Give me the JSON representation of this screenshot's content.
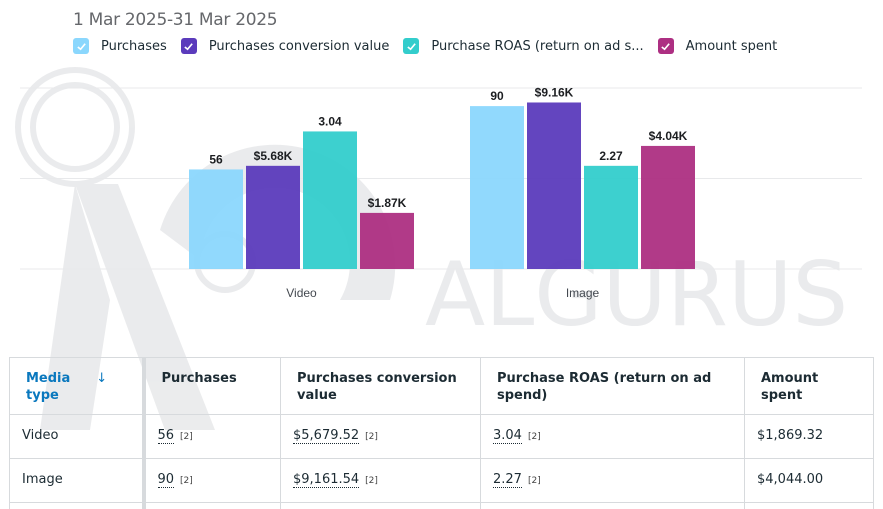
{
  "header": {
    "date_range": "1 Mar 2025-31 Mar 2025"
  },
  "legend": [
    {
      "label": "Purchases",
      "color": "#8bd7fd"
    },
    {
      "label": "Purchases conversion value",
      "color": "#5b3bbc"
    },
    {
      "label": "Purchase ROAS (return on ad s...",
      "color": "#33cdcc"
    },
    {
      "label": "Amount spent",
      "color": "#ad2f82"
    }
  ],
  "chart_data": {
    "type": "bar",
    "title": "",
    "xlabel": "",
    "ylabel": "",
    "categories": [
      "Video",
      "Image"
    ],
    "series": [
      {
        "name": "Purchases",
        "values": [
          56,
          90
        ],
        "labels": [
          "56",
          "90"
        ],
        "color": "#8bd7fd"
      },
      {
        "name": "Purchases conversion value",
        "values": [
          5679.52,
          9161.54
        ],
        "labels": [
          "$5.68K",
          "$9.16K"
        ],
        "color": "#5b3bbc"
      },
      {
        "name": "Purchase ROAS (return on ad spend)",
        "values": [
          3.04,
          2.27
        ],
        "labels": [
          "3.04",
          "2.27"
        ],
        "color": "#33cdcc"
      },
      {
        "name": "Amount spent",
        "values": [
          1869.32,
          4044.0
        ],
        "labels": [
          "$1.87K",
          "$4.04K"
        ],
        "color": "#ad2f82"
      }
    ],
    "bar_scale_fraction": {
      "Purchases": [
        0.55,
        0.9
      ],
      "Purchases conversion value": [
        0.57,
        0.92
      ],
      "Purchase ROAS (return on ad spend)": [
        0.76,
        0.57
      ],
      "Amount spent": [
        0.31,
        0.68
      ]
    },
    "grid": true,
    "legend_position": "top-left"
  },
  "watermark": {
    "text": "ALGURUS"
  },
  "table": {
    "columns": [
      {
        "label": "Media type",
        "sorted": true,
        "sort_icon": "arrow-down-icon"
      },
      {
        "label": "Purchases"
      },
      {
        "label": "Purchases conversion value"
      },
      {
        "label": "Purchase ROAS (return on ad spend)"
      },
      {
        "label": "Amount spent"
      }
    ],
    "sort_arrow": "↓",
    "rows": [
      {
        "media_type": "Video",
        "purchases": "56",
        "conversion_value": "$5,679.52",
        "roas": "3.04",
        "amount_spent": "$1,869.32",
        "footnote": "[2]"
      },
      {
        "media_type": "Image",
        "purchases": "90",
        "conversion_value": "$9,161.54",
        "roas": "2.27",
        "amount_spent": "$4,044.00",
        "footnote": "[2]"
      }
    ]
  }
}
